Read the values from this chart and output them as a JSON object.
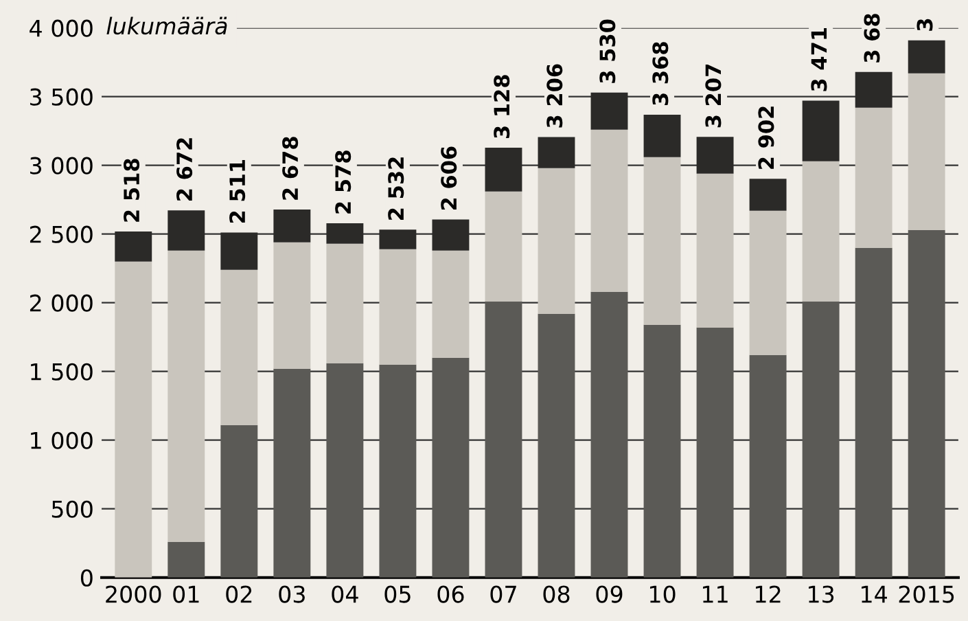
{
  "chart_data": {
    "type": "bar",
    "stacked": true,
    "ylabel": "lukumäärä",
    "categories": [
      "2000",
      "01",
      "02",
      "03",
      "04",
      "05",
      "06",
      "07",
      "08",
      "09",
      "10",
      "11",
      "12",
      "13",
      "14",
      "2015"
    ],
    "series": [
      {
        "color": "#5b5a56",
        "values": [
          0,
          260,
          1110,
          1520,
          1560,
          1550,
          1600,
          2010,
          1920,
          2080,
          1840,
          1820,
          1620,
          2010,
          2400,
          2530
        ]
      },
      {
        "color": "#c9c5bd",
        "values": [
          2300,
          2120,
          1130,
          920,
          870,
          840,
          780,
          800,
          1060,
          1180,
          1220,
          1120,
          1050,
          1020,
          1020,
          1140
        ]
      },
      {
        "color": "#2b2a28",
        "values": [
          218,
          292,
          271,
          238,
          148,
          142,
          226,
          318,
          226,
          270,
          308,
          267,
          232,
          441,
          260,
          240
        ]
      }
    ],
    "totals": [
      "2 518",
      "2 672",
      "2 511",
      "2 678",
      "2 578",
      "2 532",
      "2 606",
      "3 128",
      "3 206",
      "3 530",
      "3 368",
      "3 207",
      "2 902",
      "3 471",
      null,
      null
    ],
    "annotations": [
      {
        "text": "3 68",
        "x": "14",
        "y": 3680
      },
      {
        "text": "3",
        "x": "2015",
        "y": 3910
      }
    ],
    "ylim": [
      0,
      4000
    ],
    "yticks": [
      0,
      500,
      {
        "value": 1000,
        "label": "1 000"
      },
      {
        "value": 1500,
        "label": "1 500"
      },
      {
        "value": 2000,
        "label": "2 000"
      },
      {
        "value": 2500,
        "label": "2 500"
      },
      {
        "value": 3000,
        "label": "3 000"
      },
      {
        "value": 3500,
        "label": "3 500"
      },
      {
        "value": 4000,
        "label": "4 000"
      }
    ],
    "grid": "y"
  }
}
